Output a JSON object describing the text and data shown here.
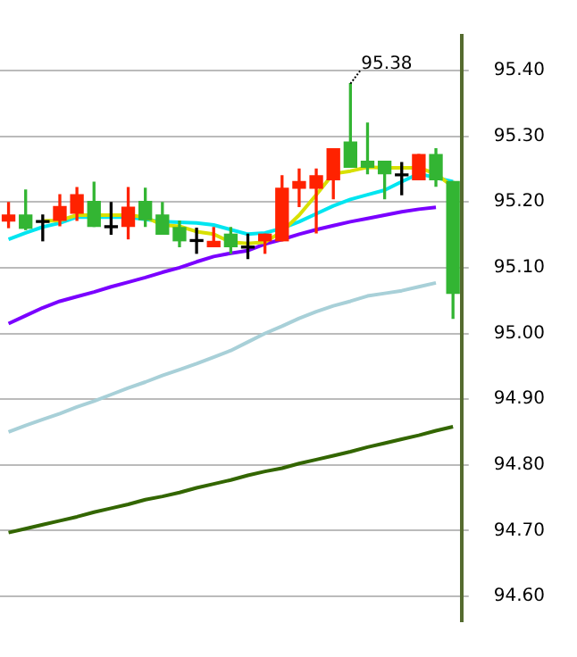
{
  "chart_data": {
    "type": "candlestick",
    "categories": [
      null,
      null,
      null,
      null,
      null,
      null,
      null,
      null,
      null,
      null,
      null,
      null,
      null,
      null,
      null,
      null,
      null,
      null,
      null,
      null,
      null,
      null,
      null,
      null,
      null,
      null,
      null
    ],
    "series": [
      {
        "ohlc": [
          [
            95.171,
            95.199,
            95.161,
            95.18
          ],
          [
            95.18,
            95.218,
            95.158,
            95.16
          ],
          [
            95.169,
            95.18,
            95.141,
            95.169
          ],
          [
            95.172,
            95.211,
            95.164,
            95.193
          ],
          [
            95.183,
            95.222,
            95.172,
            95.211
          ],
          [
            95.201,
            95.23,
            95.163,
            95.163
          ],
          [
            95.161,
            95.199,
            95.151,
            95.161
          ],
          [
            95.163,
            95.222,
            95.144,
            95.192
          ],
          [
            95.201,
            95.221,
            95.163,
            95.173
          ],
          [
            95.18,
            95.199,
            95.151,
            95.151
          ],
          [
            95.161,
            95.171,
            95.132,
            95.141
          ],
          [
            95.14,
            95.16,
            95.122,
            95.14
          ],
          [
            95.132,
            95.161,
            95.132,
            95.14
          ],
          [
            95.151,
            95.161,
            95.122,
            95.132
          ],
          [
            95.13,
            95.151,
            95.114,
            95.13
          ],
          [
            95.141,
            95.151,
            95.122,
            95.151
          ],
          [
            95.141,
            95.24,
            95.141,
            95.221
          ],
          [
            95.221,
            95.25,
            95.193,
            95.231
          ],
          [
            95.221,
            95.25,
            95.153,
            95.24
          ],
          [
            95.234,
            95.281,
            95.205,
            95.281
          ],
          [
            95.291,
            95.38,
            95.253,
            95.253
          ],
          [
            95.262,
            95.32,
            95.243,
            95.253
          ],
          [
            95.262,
            95.262,
            95.205,
            95.243
          ],
          [
            95.24,
            95.26,
            95.211,
            95.24
          ],
          [
            95.234,
            95.272,
            95.234,
            95.272
          ],
          [
            95.272,
            95.281,
            95.224,
            95.234
          ],
          [
            95.231,
            95.231,
            95.023,
            95.061
          ]
        ],
        "colors": [
          "#ff2200",
          "#33b533",
          "#000000",
          "#ff2200",
          "#ff2200",
          "#33b533",
          "#000000",
          "#ff2200",
          "#33b533",
          "#33b533",
          "#33b533",
          "#000000",
          "#ff2200",
          "#33b533",
          "#000000",
          "#ff2200",
          "#ff2200",
          "#ff2200",
          "#ff2200",
          "#ff2200",
          "#33b533",
          "#33b533",
          "#33b533",
          "#000000",
          "#ff2200",
          "#33b533",
          "#33b533"
        ]
      },
      {
        "type": "line",
        "color": "#d8e000",
        "values": [
          null,
          null,
          95.171,
          95.172,
          95.18,
          95.18,
          95.18,
          95.18,
          95.177,
          95.165,
          95.163,
          95.155,
          95.151,
          95.139,
          95.137,
          95.139,
          95.155,
          95.18,
          95.211,
          95.243,
          95.247,
          95.253,
          95.252,
          95.252,
          95.252,
          95.243,
          95.223
        ]
      },
      {
        "type": "line",
        "color": "#00e5f0",
        "values": [
          95.143,
          95.153,
          95.162,
          95.168,
          95.177,
          95.177,
          95.177,
          95.177,
          null,
          95.17,
          95.169,
          95.168,
          95.165,
          95.158,
          95.151,
          95.153,
          95.16,
          95.17,
          95.182,
          95.194,
          95.204,
          95.211,
          95.218,
          95.231,
          95.243,
          null,
          95.231
        ]
      },
      {
        "type": "line",
        "color": "#7a00ff",
        "values": [
          95.015,
          95.027,
          95.039,
          95.049,
          95.056,
          95.063,
          95.071,
          95.078,
          95.085,
          95.093,
          95.1,
          95.109,
          95.117,
          95.122,
          95.126,
          95.136,
          95.143,
          95.151,
          95.158,
          95.164,
          95.17,
          95.175,
          95.18,
          95.185,
          95.189,
          95.192,
          null
        ]
      },
      {
        "type": "line",
        "color": "#a8d0d8",
        "values": [
          94.85,
          94.86,
          94.869,
          94.878,
          94.888,
          94.897,
          94.907,
          94.917,
          94.926,
          94.936,
          94.945,
          94.954,
          94.964,
          94.974,
          94.987,
          95.0,
          95.011,
          95.023,
          95.033,
          95.042,
          95.049,
          95.057,
          95.061,
          95.065,
          95.071,
          95.077,
          null
        ]
      },
      {
        "type": "line",
        "color": "#336600",
        "values": [
          94.697,
          94.703,
          94.709,
          94.715,
          94.721,
          94.728,
          94.734,
          94.74,
          94.747,
          94.752,
          94.758,
          94.765,
          94.771,
          94.777,
          94.784,
          94.79,
          94.795,
          94.802,
          94.808,
          94.814,
          94.82,
          94.827,
          94.833,
          94.839,
          94.845,
          94.852,
          94.858
        ]
      }
    ],
    "ylim": [
      94.562,
      95.453
    ],
    "yticks": [
      {
        "value": 95.4,
        "label": "95.40"
      },
      {
        "value": 95.3,
        "label": "95.30"
      },
      {
        "value": 95.2,
        "label": "95.20"
      },
      {
        "value": 95.1,
        "label": "95.10"
      },
      {
        "value": 95.0,
        "label": "95.00"
      },
      {
        "value": 94.9,
        "label": "94.90"
      },
      {
        "value": 94.8,
        "label": "94.80"
      },
      {
        "value": 94.7,
        "label": "94.70"
      },
      {
        "value": 94.6,
        "label": "94.60"
      }
    ],
    "tick_labels": "y",
    "grid": "y",
    "legend": false,
    "marker": "none",
    "annotations": [
      "95.38"
    ]
  }
}
